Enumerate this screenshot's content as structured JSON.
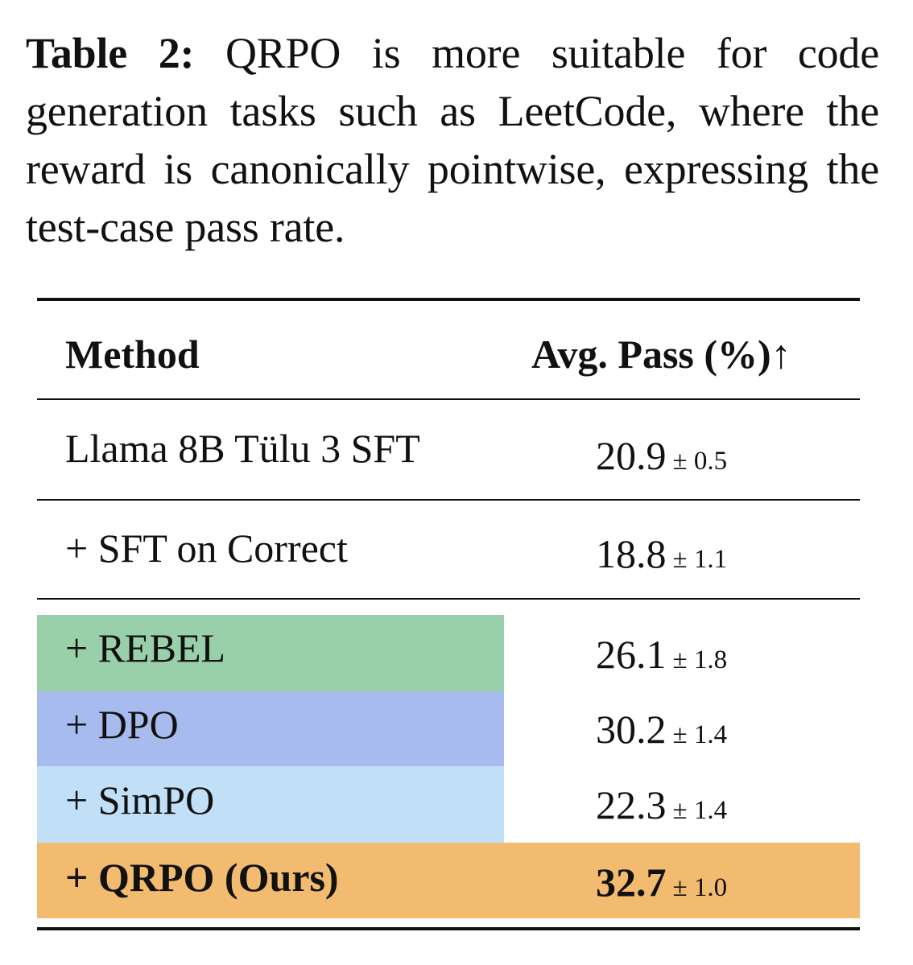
{
  "caption": {
    "label": "Table 2:",
    "text": "QRPO is more suitable for code generation tasks such as LeetCode, where the reward is canonically pointwise, expressing the test-case pass rate."
  },
  "table": {
    "headers": {
      "method": "Method",
      "metric": "Avg. Pass (%)↑"
    },
    "rows": [
      {
        "method": "Llama 8B Tülu 3 SFT",
        "value": "20.9",
        "std": "± 0.5"
      },
      {
        "method": "+ SFT on Correct",
        "value": "18.8",
        "std": "± 1.1"
      },
      {
        "method": "+ REBEL",
        "value": "26.1",
        "std": "± 1.8"
      },
      {
        "method": "+ DPO",
        "value": "30.2",
        "std": "± 1.4"
      },
      {
        "method": "+ SimPO",
        "value": "22.3",
        "std": "± 1.4"
      },
      {
        "method": "+ QRPO (Ours)",
        "value": "32.7",
        "std": "± 1.0"
      }
    ]
  },
  "colors": {
    "rebel": "#99cfa9",
    "dpo": "#a8bbee",
    "simpo": "#c1e0f7",
    "qrpo": "#f3bb6f"
  }
}
